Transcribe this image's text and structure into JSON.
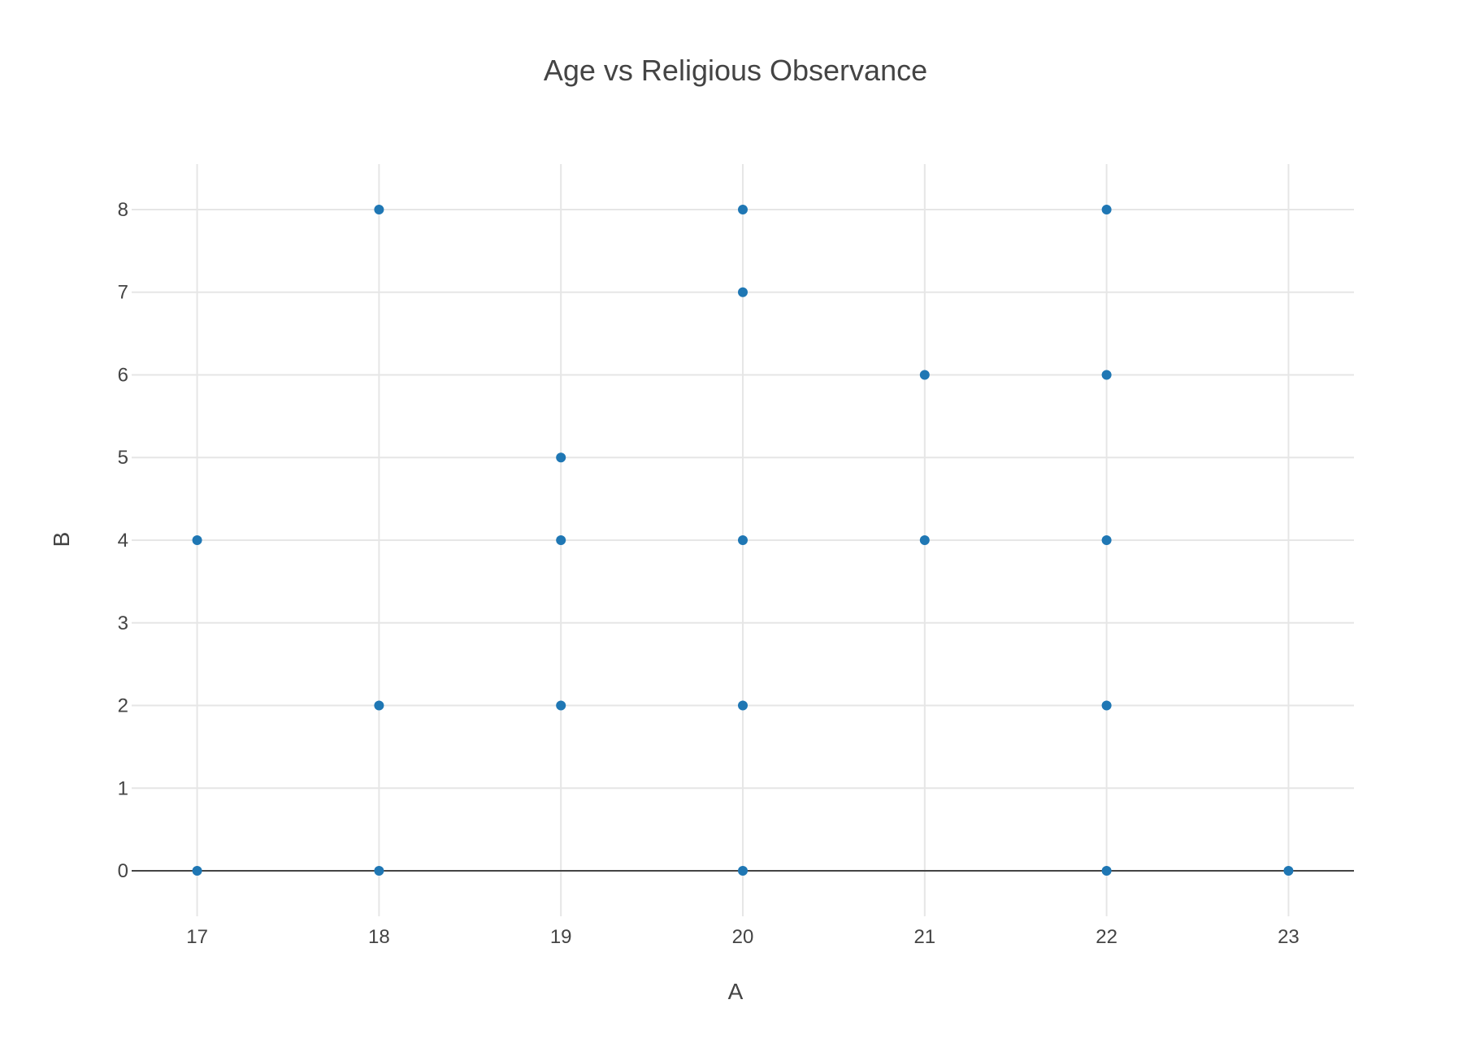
{
  "chart_data": {
    "type": "scatter",
    "title": "Age vs Religious Observance",
    "xlabel": "A",
    "ylabel": "B",
    "xlim": [
      16.64,
      23.36
    ],
    "ylim": [
      -0.55,
      8.55
    ],
    "x_ticks": [
      "17",
      "18",
      "19",
      "20",
      "21",
      "22",
      "23"
    ],
    "y_ticks": [
      "0",
      "1",
      "2",
      "3",
      "4",
      "5",
      "6",
      "7",
      "8"
    ],
    "grid": true,
    "zeroline_y": true,
    "marker_color": "#1f77b4",
    "series": [
      {
        "points": [
          {
            "x": 17,
            "y": 4
          },
          {
            "x": 17,
            "y": 0
          },
          {
            "x": 18,
            "y": 8
          },
          {
            "x": 18,
            "y": 2
          },
          {
            "x": 18,
            "y": 0
          },
          {
            "x": 19,
            "y": 5
          },
          {
            "x": 19,
            "y": 4
          },
          {
            "x": 19,
            "y": 2
          },
          {
            "x": 20,
            "y": 8
          },
          {
            "x": 20,
            "y": 7
          },
          {
            "x": 20,
            "y": 4
          },
          {
            "x": 20,
            "y": 2
          },
          {
            "x": 20,
            "y": 0
          },
          {
            "x": 21,
            "y": 6
          },
          {
            "x": 21,
            "y": 4
          },
          {
            "x": 22,
            "y": 8
          },
          {
            "x": 22,
            "y": 6
          },
          {
            "x": 22,
            "y": 4
          },
          {
            "x": 22,
            "y": 2
          },
          {
            "x": 22,
            "y": 0
          },
          {
            "x": 23,
            "y": 0
          }
        ]
      }
    ]
  }
}
